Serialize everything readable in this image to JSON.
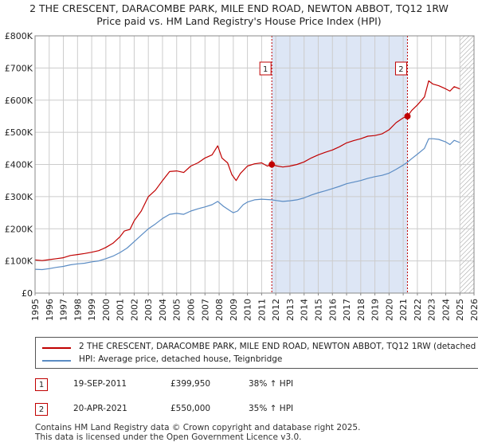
{
  "title_line1": "2 THE CRESCENT, DARACOMBE PARK, MILE END ROAD, NEWTON ABBOT, TQ12 1RW",
  "title_line2": "Price paid vs. HM Land Registry's House Price Index (HPI)",
  "colors": {
    "property": "#c00000",
    "hpi": "#5b8cc4",
    "shade": "#dde6f5",
    "grid": "#cccccc",
    "vline": "#c00000"
  },
  "chart_data": {
    "type": "line",
    "title": "2 THE CRESCENT, DARACOMBE PARK, MILE END ROAD, NEWTON ABBOT, TQ12 1RW",
    "subtitle": "Price paid vs. HM Land Registry's House Price Index (HPI)",
    "xlim": [
      1995,
      2026
    ],
    "ylim": [
      0,
      800000
    ],
    "x_ticks": [
      "1995",
      "1996",
      "1997",
      "1998",
      "1999",
      "2000",
      "2001",
      "2002",
      "2003",
      "2004",
      "2005",
      "2006",
      "2007",
      "2008",
      "2009",
      "2010",
      "2011",
      "2012",
      "2013",
      "2014",
      "2015",
      "2016",
      "2017",
      "2018",
      "2019",
      "2020",
      "2021",
      "2022",
      "2023",
      "2024",
      "2025",
      "2026"
    ],
    "y_ticks": [
      {
        "value": 0,
        "label": "£0"
      },
      {
        "value": 100000,
        "label": "£100K"
      },
      {
        "value": 200000,
        "label": "£200K"
      },
      {
        "value": 300000,
        "label": "£300K"
      },
      {
        "value": 400000,
        "label": "£400K"
      },
      {
        "value": 500000,
        "label": "£500K"
      },
      {
        "value": 600000,
        "label": "£600K"
      },
      {
        "value": 700000,
        "label": "£700K"
      },
      {
        "value": 800000,
        "label": "£800K"
      }
    ],
    "shaded_range": [
      2011.72,
      2021.3
    ],
    "hatched_from": 2025.0,
    "grid": true,
    "series": [
      {
        "name": "2 THE CRESCENT, DARACOMBE PARK, MILE END ROAD, NEWTON ABBOT, TQ12 1RW (detached",
        "points": [
          [
            1995.0,
            103000
          ],
          [
            1995.5,
            101000
          ],
          [
            1996.0,
            104000
          ],
          [
            1996.5,
            107000
          ],
          [
            1997.0,
            110000
          ],
          [
            1997.5,
            117000
          ],
          [
            1998.0,
            120000
          ],
          [
            1998.5,
            123000
          ],
          [
            1999.0,
            127000
          ],
          [
            1999.5,
            132000
          ],
          [
            2000.0,
            142000
          ],
          [
            2000.5,
            155000
          ],
          [
            2001.0,
            175000
          ],
          [
            2001.3,
            193000
          ],
          [
            2001.7,
            198000
          ],
          [
            2002.0,
            225000
          ],
          [
            2002.5,
            255000
          ],
          [
            2003.0,
            300000
          ],
          [
            2003.5,
            320000
          ],
          [
            2004.0,
            350000
          ],
          [
            2004.5,
            378000
          ],
          [
            2005.0,
            380000
          ],
          [
            2005.5,
            375000
          ],
          [
            2006.0,
            395000
          ],
          [
            2006.5,
            405000
          ],
          [
            2007.0,
            420000
          ],
          [
            2007.5,
            430000
          ],
          [
            2007.9,
            458000
          ],
          [
            2008.2,
            420000
          ],
          [
            2008.6,
            405000
          ],
          [
            2008.9,
            368000
          ],
          [
            2009.2,
            350000
          ],
          [
            2009.5,
            372000
          ],
          [
            2010.0,
            395000
          ],
          [
            2010.5,
            402000
          ],
          [
            2011.0,
            405000
          ],
          [
            2011.4,
            395000
          ],
          [
            2011.72,
            399950
          ],
          [
            2012.0,
            396000
          ],
          [
            2012.5,
            392000
          ],
          [
            2013.0,
            395000
          ],
          [
            2013.5,
            400000
          ],
          [
            2014.0,
            408000
          ],
          [
            2014.5,
            420000
          ],
          [
            2015.0,
            430000
          ],
          [
            2015.5,
            438000
          ],
          [
            2016.0,
            445000
          ],
          [
            2016.5,
            455000
          ],
          [
            2017.0,
            467000
          ],
          [
            2017.5,
            474000
          ],
          [
            2018.0,
            480000
          ],
          [
            2018.5,
            488000
          ],
          [
            2019.0,
            490000
          ],
          [
            2019.5,
            495000
          ],
          [
            2020.0,
            508000
          ],
          [
            2020.5,
            530000
          ],
          [
            2021.0,
            545000
          ],
          [
            2021.3,
            550000
          ],
          [
            2021.6,
            568000
          ],
          [
            2022.0,
            585000
          ],
          [
            2022.5,
            610000
          ],
          [
            2022.8,
            660000
          ],
          [
            2023.1,
            650000
          ],
          [
            2023.5,
            645000
          ],
          [
            2024.0,
            635000
          ],
          [
            2024.3,
            628000
          ],
          [
            2024.6,
            642000
          ],
          [
            2025.0,
            635000
          ]
        ]
      },
      {
        "name": "HPI: Average price, detached house, Teignbridge",
        "points": [
          [
            1995.0,
            74000
          ],
          [
            1995.5,
            73000
          ],
          [
            1996.0,
            76000
          ],
          [
            1996.5,
            80000
          ],
          [
            1997.0,
            83000
          ],
          [
            1997.5,
            88000
          ],
          [
            1998.0,
            91000
          ],
          [
            1998.5,
            93000
          ],
          [
            1999.0,
            97000
          ],
          [
            1999.5,
            100000
          ],
          [
            2000.0,
            107000
          ],
          [
            2000.5,
            115000
          ],
          [
            2001.0,
            126000
          ],
          [
            2001.5,
            140000
          ],
          [
            2002.0,
            160000
          ],
          [
            2002.5,
            180000
          ],
          [
            2003.0,
            200000
          ],
          [
            2003.5,
            215000
          ],
          [
            2004.0,
            232000
          ],
          [
            2004.5,
            245000
          ],
          [
            2005.0,
            248000
          ],
          [
            2005.5,
            245000
          ],
          [
            2006.0,
            255000
          ],
          [
            2006.5,
            262000
          ],
          [
            2007.0,
            268000
          ],
          [
            2007.5,
            275000
          ],
          [
            2007.9,
            285000
          ],
          [
            2008.3,
            270000
          ],
          [
            2008.7,
            258000
          ],
          [
            2009.0,
            250000
          ],
          [
            2009.3,
            255000
          ],
          [
            2009.7,
            275000
          ],
          [
            2010.0,
            283000
          ],
          [
            2010.5,
            290000
          ],
          [
            2011.0,
            292000
          ],
          [
            2011.72,
            290000
          ],
          [
            2012.0,
            288000
          ],
          [
            2012.5,
            285000
          ],
          [
            2013.0,
            287000
          ],
          [
            2013.5,
            290000
          ],
          [
            2014.0,
            296000
          ],
          [
            2014.5,
            305000
          ],
          [
            2015.0,
            312000
          ],
          [
            2015.5,
            318000
          ],
          [
            2016.0,
            325000
          ],
          [
            2016.5,
            332000
          ],
          [
            2017.0,
            340000
          ],
          [
            2017.5,
            345000
          ],
          [
            2018.0,
            350000
          ],
          [
            2018.5,
            357000
          ],
          [
            2019.0,
            362000
          ],
          [
            2019.5,
            366000
          ],
          [
            2020.0,
            373000
          ],
          [
            2020.5,
            385000
          ],
          [
            2021.0,
            398000
          ],
          [
            2021.3,
            407000
          ],
          [
            2021.6,
            418000
          ],
          [
            2022.0,
            432000
          ],
          [
            2022.5,
            450000
          ],
          [
            2022.8,
            480000
          ],
          [
            2023.1,
            480000
          ],
          [
            2023.5,
            478000
          ],
          [
            2024.0,
            470000
          ],
          [
            2024.3,
            462000
          ],
          [
            2024.6,
            475000
          ],
          [
            2025.0,
            468000
          ]
        ]
      }
    ],
    "markers": [
      {
        "label": "1",
        "x": 2011.72,
        "y": 399950
      },
      {
        "label": "2",
        "x": 2021.3,
        "y": 550000
      }
    ]
  },
  "legend": {
    "property_label": "2 THE CRESCENT, DARACOMBE PARK, MILE END ROAD, NEWTON ABBOT, TQ12 1RW (detached",
    "hpi_label": "HPI: Average price, detached house, Teignbridge"
  },
  "transactions": [
    {
      "num": "1",
      "date": "19-SEP-2011",
      "price": "£399,950",
      "hpi": "38% ↑ HPI"
    },
    {
      "num": "2",
      "date": "20-APR-2021",
      "price": "£550,000",
      "hpi": "35% ↑ HPI"
    }
  ],
  "footer": {
    "line1": "Contains HM Land Registry data © Crown copyright and database right 2025.",
    "line2": "This data is licensed under the Open Government Licence v3.0."
  }
}
